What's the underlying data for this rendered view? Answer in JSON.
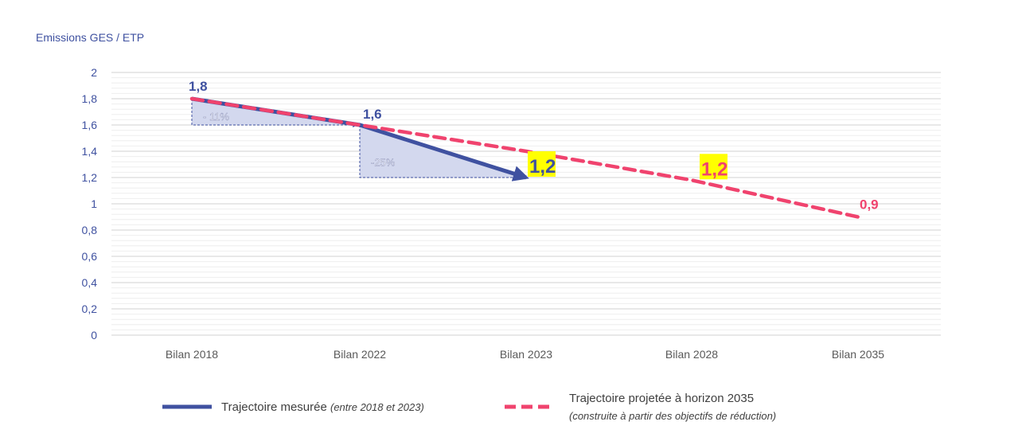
{
  "chart_data": {
    "type": "line",
    "ylabel": "Emissions GES / ETP",
    "categories": [
      "Bilan 2018",
      "Bilan 2022",
      "Bilan 2023",
      "Bilan 2028",
      "Bilan 2035"
    ],
    "ylim": [
      0,
      2
    ],
    "yticks": [
      "0",
      "0,2",
      "0,4",
      "0,6",
      "0,8",
      "1",
      "1,2",
      "1,4",
      "1,6",
      "1,8",
      "2"
    ],
    "grid": true,
    "legend_placement": "bottom",
    "series": [
      {
        "name": "Trajectoire mesurée",
        "name_note": "(entre 2018 et 2023)",
        "style": "solid",
        "color": "#3F51A0",
        "values": [
          1.8,
          1.6,
          1.2,
          null,
          null
        ]
      },
      {
        "name": "Trajectoire projetée à horizon 2035",
        "name_note": "(construite à partir des objectifs de réduction)",
        "style": "dashed",
        "color": "#F0436E",
        "values": [
          1.8,
          1.6,
          1.4,
          1.18,
          0.9
        ]
      }
    ],
    "data_labels": [
      {
        "text": "1,8",
        "category": "Bilan 2018",
        "value": 1.8,
        "color": "#3F51A0",
        "highlight": false
      },
      {
        "text": "1,6",
        "category": "Bilan 2022",
        "value": 1.6,
        "color": "#3F51A0",
        "highlight": false
      },
      {
        "text": "1,2",
        "category": "Bilan 2023",
        "value": 1.2,
        "color": "#3F51A0",
        "highlight": true
      },
      {
        "text": "1,2",
        "category": "Bilan 2028",
        "value": 1.18,
        "color": "#F0436E",
        "highlight": true
      },
      {
        "text": "0,9",
        "category": "Bilan 2035",
        "value": 0.9,
        "color": "#F0436E",
        "highlight": false
      }
    ],
    "annotations": [
      {
        "text": "- 11%",
        "from": "Bilan 2018",
        "to": "Bilan 2022",
        "from_value": 1.8,
        "to_value": 1.6
      },
      {
        "text": "-25%",
        "from": "Bilan 2022",
        "to": "Bilan 2023",
        "from_value": 1.6,
        "to_value": 1.2
      }
    ],
    "highlight_color": "#FFFF00"
  }
}
